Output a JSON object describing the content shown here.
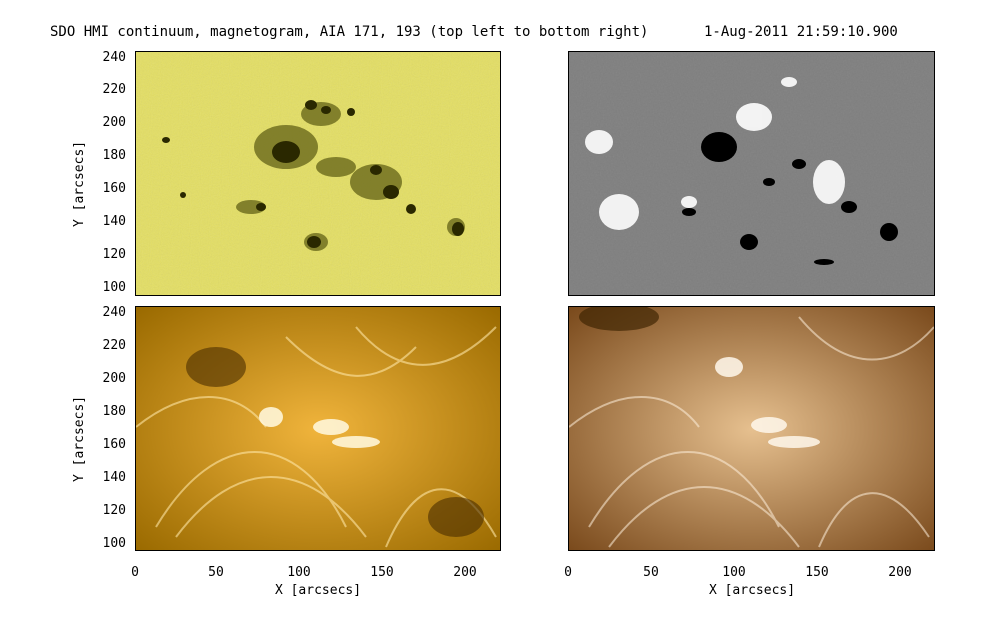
{
  "header": {
    "title": "SDO HMI continuum, magnetogram, AIA 171, 193 (top left to bottom right)",
    "datetime": "1-Aug-2011 21:59:10.900"
  },
  "panels": [
    {
      "label": "HMI continuum",
      "colors": [
        "#e6e066",
        "#4a4a00"
      ]
    },
    {
      "label": "HMI magnetogram",
      "colors": [
        "#808080",
        "#000000",
        "#ffffff"
      ]
    },
    {
      "label": "AIA 171",
      "colors": [
        "#d29000",
        "#ffe9a8",
        "#4a2d00"
      ]
    },
    {
      "label": "AIA 193",
      "colors": [
        "#c48f55",
        "#fff1d8",
        "#3b2200"
      ]
    }
  ],
  "axes": {
    "ylabel": "Y [arcsecs]",
    "xlabel": "X [arcsecs]",
    "yticks": [
      "240",
      "220",
      "200",
      "180",
      "160",
      "140",
      "120",
      "100"
    ],
    "xticks": [
      "0",
      "50",
      "100",
      "150",
      "200"
    ]
  }
}
